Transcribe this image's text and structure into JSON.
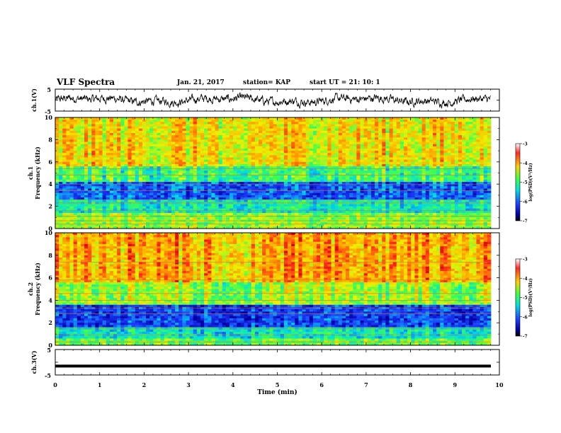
{
  "header": {
    "title": "VLF Spectra",
    "date": "Jan. 21, 2017",
    "station": "station= KAP",
    "start_ut": "start  UT =  21: 10: 1"
  },
  "chart_data": [
    {
      "type": "line",
      "name": "ch1-waveform",
      "ylabel": "ch.1(V)",
      "ylim": [
        -5,
        5
      ],
      "yticks": [
        "5",
        "-5"
      ],
      "xlim": [
        0,
        10
      ]
    },
    {
      "type": "heatmap",
      "name": "ch1-spectrogram",
      "ylabel": "ch.1",
      "ylabel2": "Frequency (kHz)",
      "ylim": [
        0,
        10
      ],
      "yticks": [
        "0",
        "2",
        "4",
        "6",
        "8",
        "10"
      ],
      "xlim": [
        0,
        10
      ],
      "colorbar": {
        "label": "log(PSD)(V²/Hz)",
        "range": [
          -7,
          -3
        ],
        "ticks": [
          "-3",
          "-4",
          "-5",
          "-6",
          "-7"
        ]
      }
    },
    {
      "type": "heatmap",
      "name": "ch2-spectrogram",
      "ylabel": "ch.2",
      "ylabel2": "Frequency (kHz)",
      "ylim": [
        0,
        10
      ],
      "yticks": [
        "0",
        "2",
        "4",
        "6",
        "8",
        "10"
      ],
      "xlim": [
        0,
        10
      ],
      "colorbar": {
        "label": "log(PSD)(V²/Hz)",
        "range": [
          -7,
          -3
        ],
        "ticks": [
          "-3",
          "-4",
          "-5",
          "-6",
          "-7"
        ]
      }
    },
    {
      "type": "line",
      "name": "ch3-waveform",
      "ylabel": "ch.3(V)",
      "ylim": [
        -5,
        5
      ],
      "yticks": [
        "5",
        "-5"
      ],
      "xlabel": "Time (min)",
      "xlim": [
        0,
        10
      ],
      "xticks": [
        "0",
        "1",
        "2",
        "3",
        "4",
        "5",
        "6",
        "7",
        "8",
        "9",
        "10"
      ],
      "level": -1.5
    }
  ],
  "colors": {
    "axis": "#000000",
    "trace": "#000000"
  }
}
